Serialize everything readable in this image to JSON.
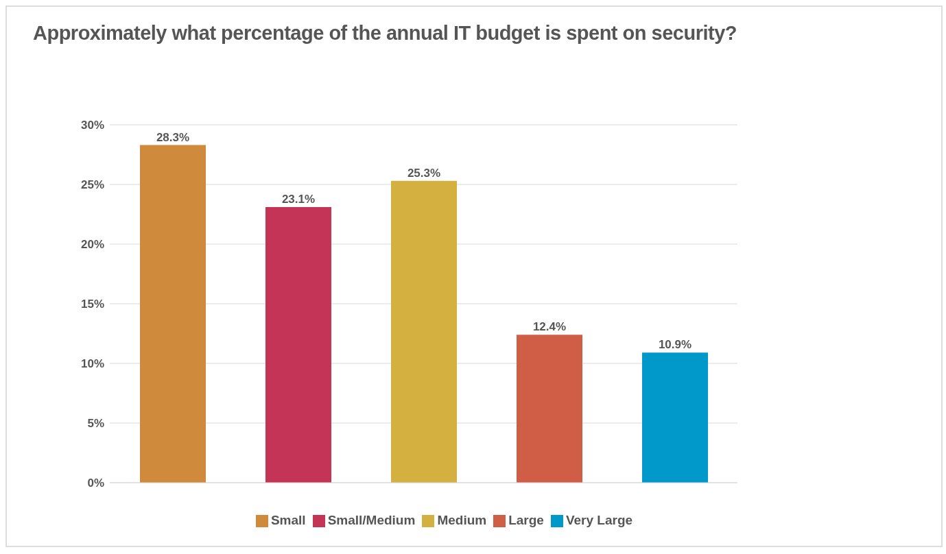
{
  "chart_data": {
    "type": "bar",
    "title": "Approximately what percentage of the annual IT budget is spent on security?",
    "categories": [
      null,
      null,
      null,
      null,
      null
    ],
    "series": [
      {
        "name": "Small",
        "color": "#d08a3c",
        "values": [
          28.3,
          null,
          null,
          null,
          null
        ],
        "value_labels": [
          "28.3%",
          null,
          null,
          null,
          null
        ]
      },
      {
        "name": "Small/Medium",
        "color": "#c43456",
        "values": [
          null,
          23.1,
          null,
          null,
          null
        ],
        "value_labels": [
          null,
          "23.1%",
          null,
          null,
          null
        ]
      },
      {
        "name": "Medium",
        "color": "#d4b040",
        "values": [
          null,
          null,
          25.3,
          null,
          null
        ],
        "value_labels": [
          null,
          null,
          "25.3%",
          null,
          null
        ]
      },
      {
        "name": "Large",
        "color": "#d05d45",
        "values": [
          null,
          null,
          null,
          12.4,
          null
        ],
        "value_labels": [
          null,
          null,
          null,
          "12.4%",
          null
        ]
      },
      {
        "name": "Very Large",
        "color": "#0099c9",
        "values": [
          null,
          null,
          null,
          null,
          10.9
        ],
        "value_labels": [
          null,
          null,
          null,
          null,
          "10.9%"
        ]
      }
    ],
    "ylim": [
      0,
      30
    ],
    "yticks": [
      {
        "value": 0,
        "label": "0%"
      },
      {
        "value": 5,
        "label": "5%"
      },
      {
        "value": 10,
        "label": "10%"
      },
      {
        "value": 15,
        "label": "15%"
      },
      {
        "value": 20,
        "label": "20%"
      },
      {
        "value": 25,
        "label": "25%"
      },
      {
        "value": 30,
        "label": "30%"
      }
    ],
    "grid": "y",
    "legend": "bottom",
    "tick_labels": "y"
  }
}
